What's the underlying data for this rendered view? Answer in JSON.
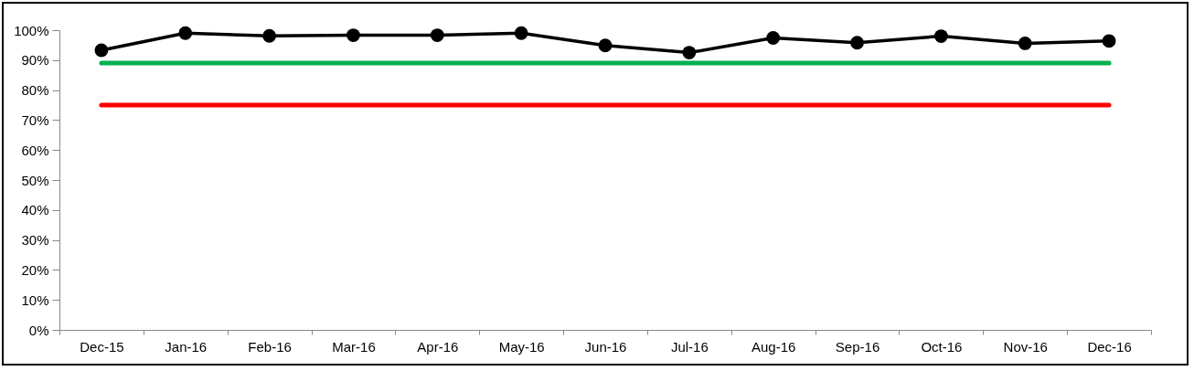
{
  "chart_data": {
    "type": "line",
    "categories": [
      "Dec-15",
      "Jan-16",
      "Feb-16",
      "Mar-16",
      "Apr-16",
      "May-16",
      "Jun-16",
      "Jul-16",
      "Aug-16",
      "Sep-16",
      "Oct-16",
      "Nov-16",
      "Dec-16"
    ],
    "series": [
      {
        "color": "#000000",
        "values": [
          93.3,
          99,
          98.1,
          98.3,
          98.3,
          99,
          94.9,
          92.5,
          97.4,
          95.8,
          98,
          95.6,
          96.4
        ]
      }
    ],
    "ylim": [
      0,
      100
    ],
    "yticks": [
      {
        "value": 0,
        "label": "0%"
      },
      {
        "value": 10,
        "label": "10%"
      },
      {
        "value": 20,
        "label": "20%"
      },
      {
        "value": 30,
        "label": "30%"
      },
      {
        "value": 40,
        "label": "40%"
      },
      {
        "value": 50,
        "label": "50%"
      },
      {
        "value": 60,
        "label": "60%"
      },
      {
        "value": 70,
        "label": "70%"
      },
      {
        "value": 80,
        "label": "80%"
      },
      {
        "value": 90,
        "label": "90%"
      },
      {
        "value": 100,
        "label": "100%"
      }
    ],
    "ref_lines": [
      {
        "axis": "y",
        "value": 89,
        "color": "#00b050"
      },
      {
        "axis": "y",
        "value": 75,
        "color": "#ff0000"
      }
    ],
    "marker": "circle",
    "grid": false
  }
}
